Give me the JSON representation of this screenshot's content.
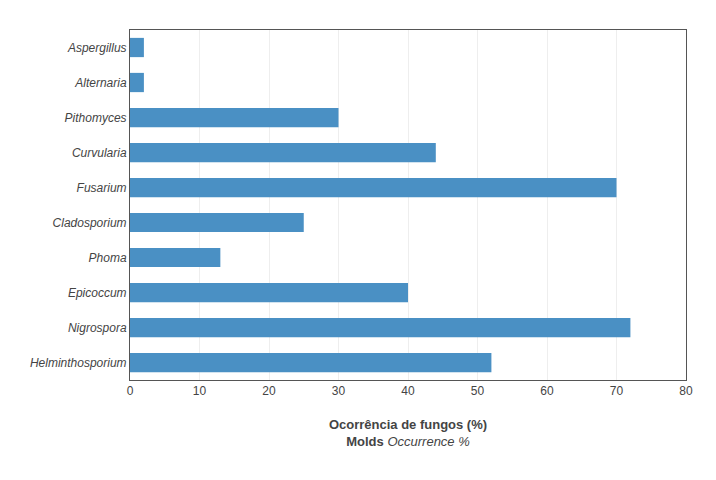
{
  "chart_data": {
    "type": "bar",
    "orientation": "horizontal",
    "categories": [
      "Aspergillus",
      "Alternaria",
      "Pithomyces",
      "Curvularia",
      "Fusarium",
      "Cladosporium",
      "Phoma",
      "Epicoccum",
      "Nigrospora",
      "Helminthosporium"
    ],
    "values": [
      2,
      2,
      30,
      44,
      70,
      25,
      13,
      40,
      72,
      52
    ],
    "color": "#4a90c4",
    "xlim": [
      0,
      80
    ],
    "xticks": [
      0,
      10,
      20,
      30,
      40,
      50,
      60,
      70,
      80
    ],
    "grid": true,
    "xlabel": "Ocorrência de fungos (%)",
    "annotations": [
      "Molds",
      "Occurrence %"
    ]
  }
}
